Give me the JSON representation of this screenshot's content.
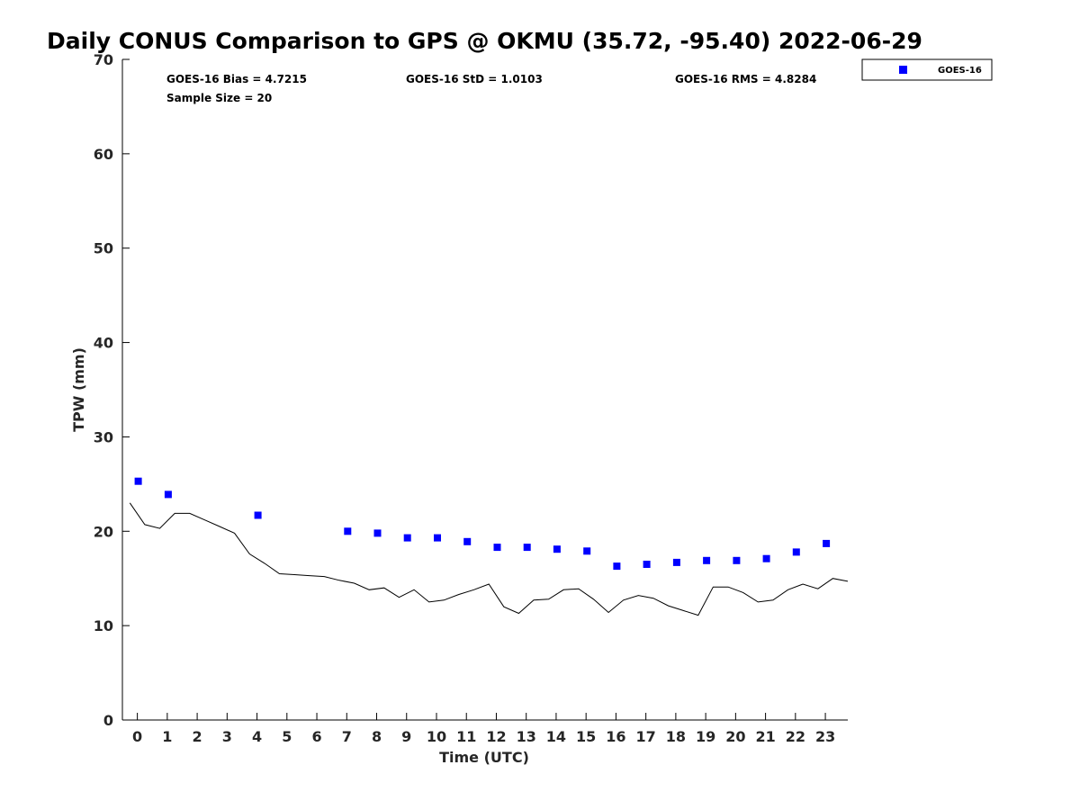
{
  "chart_data": {
    "type": "scatter",
    "title": "Daily CONUS Comparison to GPS @ OKMU (35.72, -95.40) 2022-06-29",
    "xlabel": "Time (UTC)",
    "ylabel": "TPW (mm)",
    "xlim": [
      -0.5,
      23.75
    ],
    "ylim": [
      0,
      70
    ],
    "x_ticks": [
      "0",
      "1",
      "2",
      "3",
      "4",
      "5",
      "6",
      "7",
      "8",
      "9",
      "10",
      "11",
      "12",
      "13",
      "14",
      "15",
      "16",
      "17",
      "18",
      "19",
      "20",
      "21",
      "22",
      "23"
    ],
    "y_ticks": [
      "0",
      "10",
      "20",
      "30",
      "40",
      "50",
      "60",
      "70"
    ],
    "grid": false,
    "legend_position": "top-right, outside plot",
    "stats": {
      "bias": "GOES-16 Bias = 4.7215",
      "std": "GOES-16 StD = 1.0103",
      "rms": "GOES-16 RMS = 4.8284",
      "sample_size": "Sample Size = 20"
    },
    "series": [
      {
        "name": "GOES-16",
        "marker": "square",
        "color": "#0000ff",
        "x": [
          0.03,
          1.03,
          4.03,
          7.03,
          8.03,
          9.03,
          10.03,
          11.03,
          12.03,
          13.03,
          14.03,
          15.03,
          16.03,
          17.03,
          18.03,
          19.03,
          20.03,
          21.03,
          22.03,
          23.03
        ],
        "y": [
          25.3,
          23.9,
          21.7,
          20.0,
          19.8,
          19.3,
          19.3,
          18.9,
          18.3,
          18.3,
          18.1,
          17.9,
          16.3,
          16.5,
          16.7,
          16.9,
          16.9,
          17.1,
          17.8,
          18.7
        ]
      },
      {
        "role": "GPS reference",
        "style": "line",
        "color": "#000000",
        "x": [
          -0.25,
          0.25,
          0.75,
          1.25,
          1.75,
          2.25,
          2.75,
          3.25,
          3.75,
          4.25,
          4.75,
          5.25,
          5.75,
          6.25,
          6.75,
          7.25,
          7.75,
          8.25,
          8.75,
          9.25,
          9.75,
          10.25,
          10.75,
          11.25,
          11.75,
          12.25,
          12.75,
          13.25,
          13.75,
          14.25,
          14.75,
          15.25,
          15.75,
          16.25,
          16.75,
          17.25,
          17.75,
          18.25,
          18.75,
          19.25,
          19.75,
          20.25,
          20.75,
          21.25,
          21.75,
          22.25,
          22.75,
          23.25,
          23.75
        ],
        "y": [
          23.0,
          20.7,
          20.3,
          21.9,
          21.9,
          21.2,
          20.5,
          19.8,
          17.6,
          16.6,
          15.5,
          15.4,
          15.3,
          15.2,
          14.8,
          14.5,
          13.8,
          14.0,
          13.0,
          13.8,
          12.5,
          12.7,
          13.3,
          13.8,
          14.4,
          12.0,
          11.3,
          12.7,
          12.8,
          13.8,
          13.9,
          12.8,
          11.4,
          12.7,
          13.2,
          12.9,
          12.1,
          11.6,
          11.1,
          14.1,
          14.1,
          13.5,
          12.5,
          12.7,
          13.8,
          14.4,
          13.9,
          15.0,
          14.7
        ]
      }
    ]
  }
}
